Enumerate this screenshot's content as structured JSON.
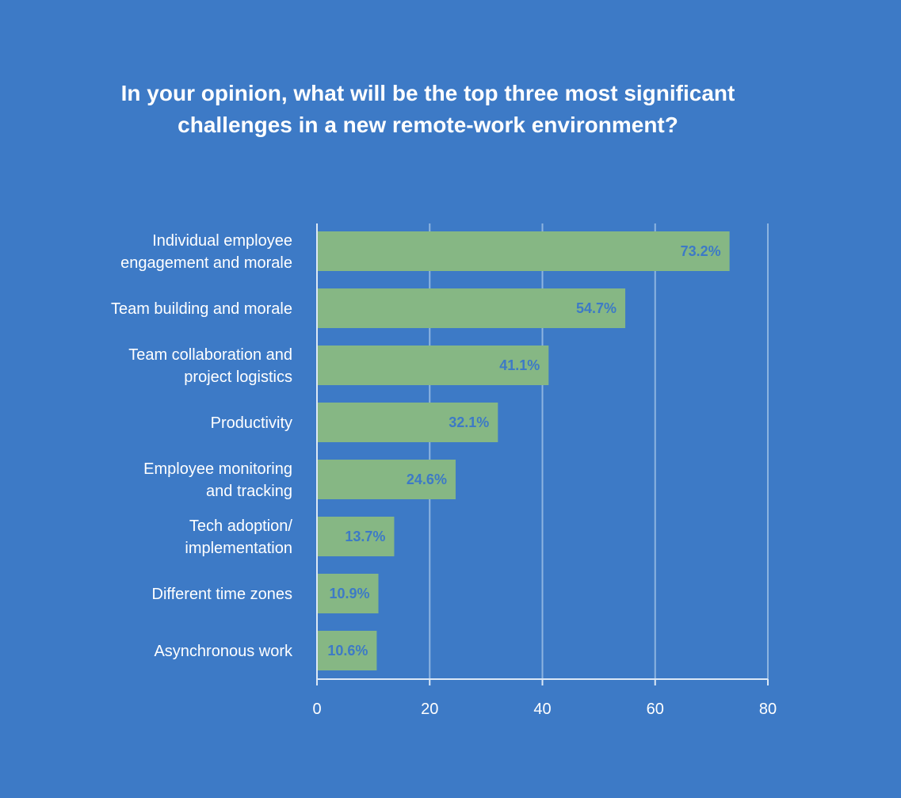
{
  "chart_data": {
    "type": "bar",
    "orientation": "horizontal",
    "title_lines": [
      "In your opinion, what will be the top three most significant",
      "challenges in a new remote-work environment?"
    ],
    "categories": [
      [
        "Individual employee",
        "engagement and morale"
      ],
      [
        "Team building and morale"
      ],
      [
        "Team collaboration and",
        "project logistics"
      ],
      [
        "Productivity"
      ],
      [
        "Employee monitoring",
        "and tracking"
      ],
      [
        "Tech adoption/",
        "implementation"
      ],
      [
        "Different time zones"
      ],
      [
        "Asynchronous work"
      ]
    ],
    "values": [
      73.2,
      54.7,
      41.1,
      32.1,
      24.6,
      13.7,
      10.9,
      10.6
    ],
    "data_labels": [
      "73.2%",
      "54.7%",
      "41.1%",
      "32.1%",
      "24.6%",
      "13.7%",
      "10.9%",
      "10.6%"
    ],
    "x_ticks": [
      "0",
      "20",
      "40",
      "60",
      "80"
    ],
    "xlim": [
      0,
      80
    ],
    "grid": true,
    "legend": "none",
    "colors": {
      "background": "#3d7ac6",
      "bar": "#86b784",
      "grid": "#8db4e0",
      "axis": "#dce8f6",
      "text": "#ffffff",
      "data_label": "#3d7ac6"
    }
  }
}
